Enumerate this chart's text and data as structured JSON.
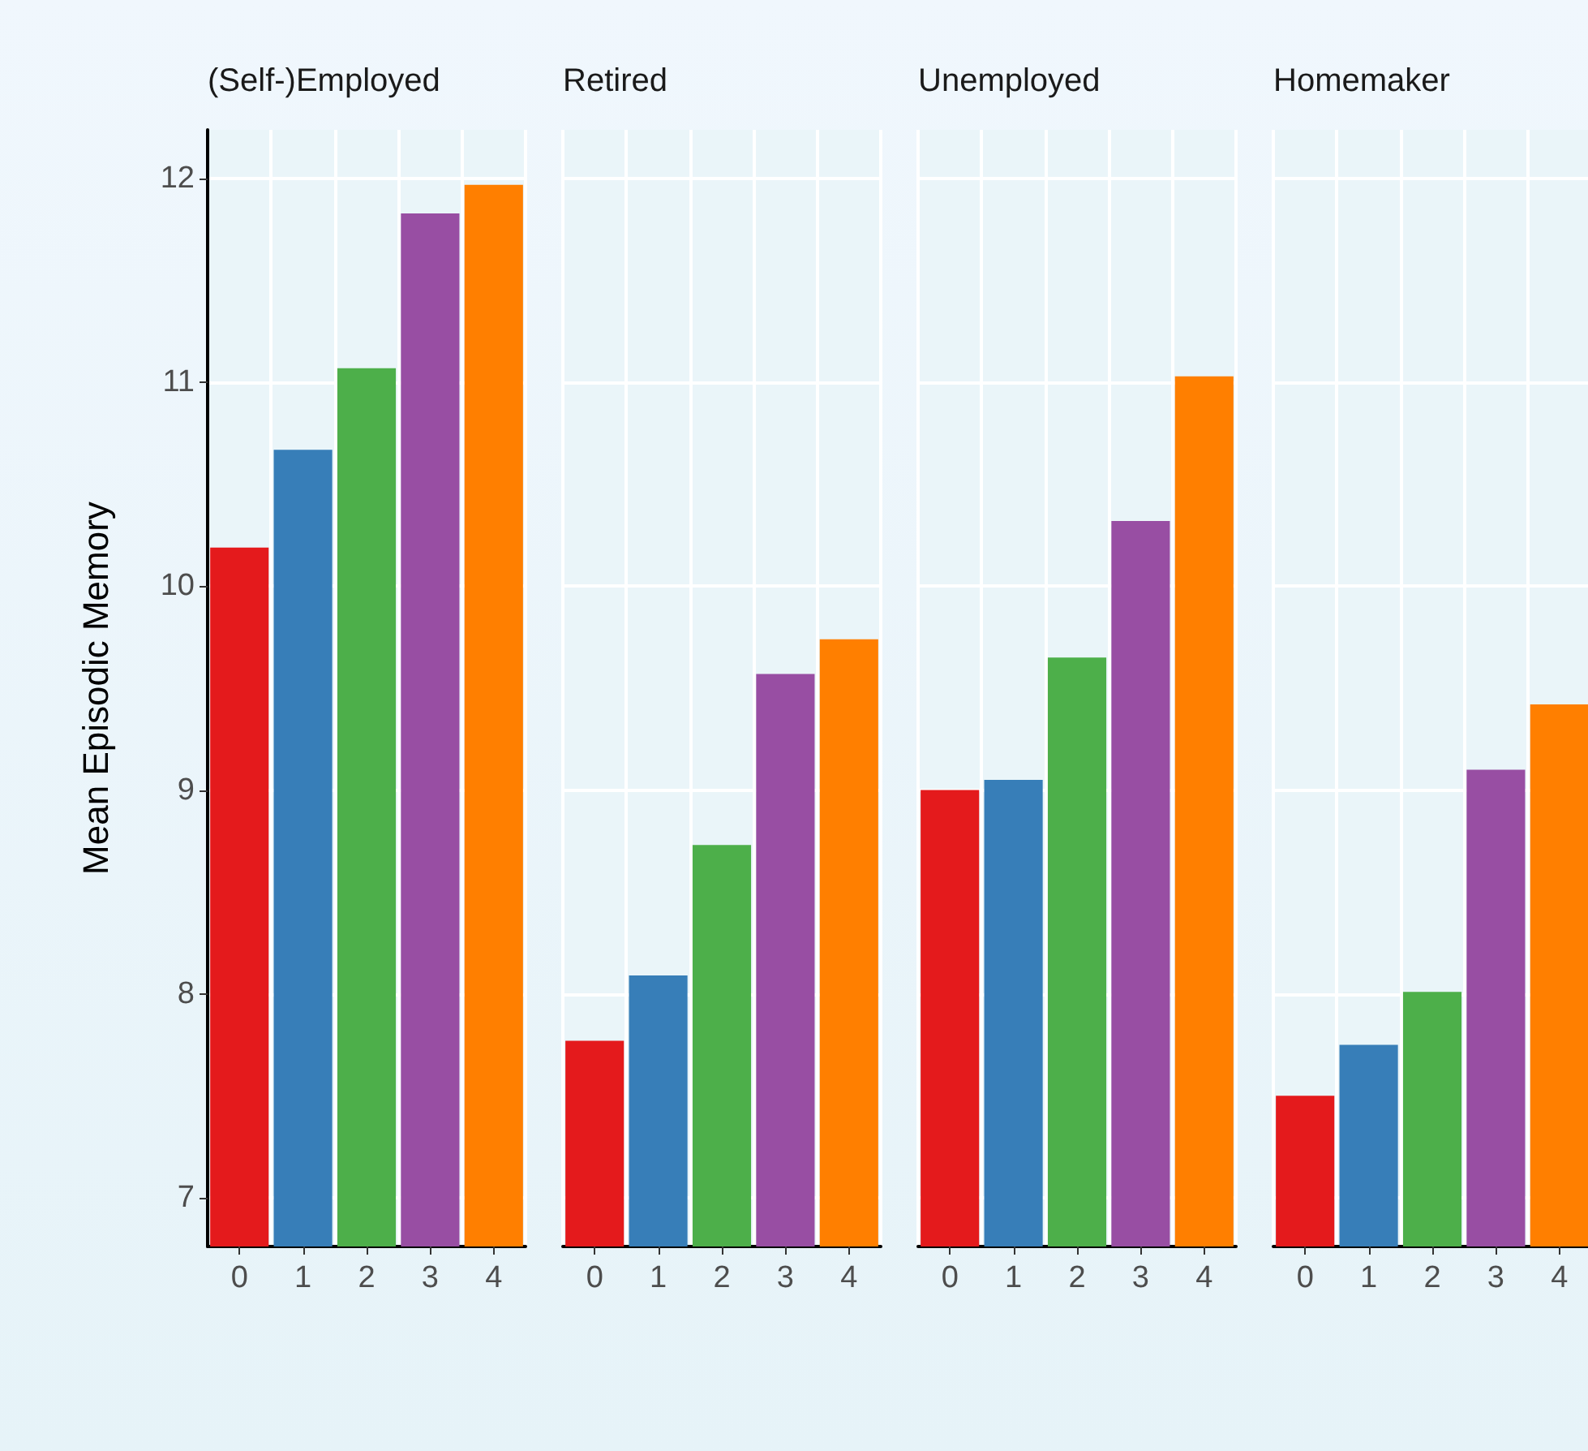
{
  "chart_data": [
    {
      "type": "bar",
      "title": "(Self-)Employed",
      "ylabel": "Mean Episodic Memory",
      "categories": [
        "0",
        "1",
        "2",
        "3",
        "4"
      ],
      "values": [
        10.19,
        10.67,
        11.07,
        11.83,
        11.97
      ],
      "colors": [
        "#e41a1c",
        "#377eb8",
        "#4daf4a",
        "#984ea3",
        "#ff7f00"
      ],
      "ylim": [
        6.76,
        12.24
      ],
      "yticks": [
        7,
        8,
        9,
        10,
        11,
        12
      ],
      "grid": true
    },
    {
      "type": "bar",
      "title": "Retired",
      "categories": [
        "0",
        "1",
        "2",
        "3",
        "4"
      ],
      "values": [
        7.77,
        8.09,
        8.73,
        9.57,
        9.74
      ],
      "colors": [
        "#e41a1c",
        "#377eb8",
        "#4daf4a",
        "#984ea3",
        "#ff7f00"
      ],
      "ylim": [
        6.76,
        12.24
      ],
      "yticks": [
        7,
        8,
        9,
        10,
        11,
        12
      ],
      "grid": true,
      "tick_labels": "x"
    },
    {
      "type": "bar",
      "title": "Unemployed",
      "categories": [
        "0",
        "1",
        "2",
        "3",
        "4"
      ],
      "values": [
        9.0,
        9.05,
        9.65,
        10.32,
        11.03
      ],
      "colors": [
        "#e41a1c",
        "#377eb8",
        "#4daf4a",
        "#984ea3",
        "#ff7f00"
      ],
      "ylim": [
        6.76,
        12.24
      ],
      "yticks": [
        7,
        8,
        9,
        10,
        11,
        12
      ],
      "grid": true,
      "tick_labels": "x"
    },
    {
      "type": "bar",
      "title": "Homemaker",
      "categories": [
        "0",
        "1",
        "2",
        "3",
        "4"
      ],
      "values": [
        7.5,
        7.75,
        8.01,
        9.1,
        9.42
      ],
      "colors": [
        "#e41a1c",
        "#377eb8",
        "#4daf4a",
        "#984ea3",
        "#ff7f00"
      ],
      "ylim": [
        6.76,
        12.24
      ],
      "yticks": [
        7,
        8,
        9,
        10,
        11,
        12
      ],
      "grid": true,
      "tick_labels": "x"
    }
  ]
}
